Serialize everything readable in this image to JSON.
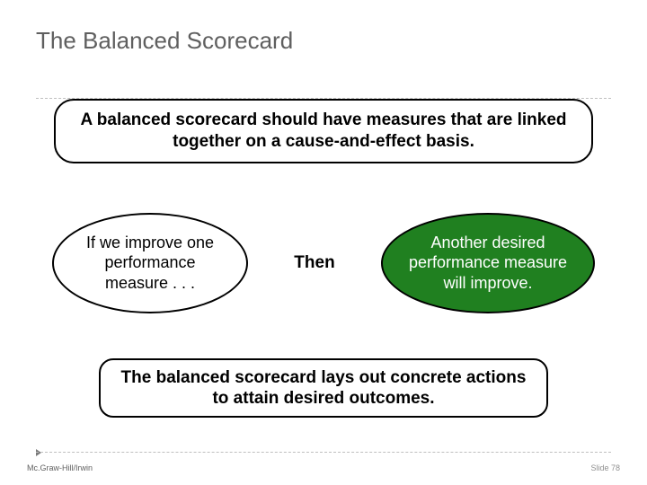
{
  "title": "The Balanced Scorecard",
  "top_box": "A balanced scorecard should have measures that are linked together on a cause-and-effect basis.",
  "oval_left": "If we improve one performance measure . . .",
  "then_label": "Then",
  "oval_right": "Another desired performance measure will improve.",
  "bottom_box": "The balanced scorecard lays out concrete actions to attain desired outcomes.",
  "footer_left": "Mc.Graw-Hill/Irwin",
  "footer_right": "Slide 78",
  "colors": {
    "title_color": "#5f5f5f",
    "dash_color": "#bfbfbf",
    "oval_right_bg": "#208020",
    "oval_right_text": "#ffffff",
    "border_color": "#000000",
    "background": "#ffffff"
  },
  "layout": {
    "slide_width": 720,
    "slide_height": 540,
    "title_fontsize": 26,
    "body_fontsize": 19,
    "oval_fontsize": 18,
    "footer_fontsize": 9
  }
}
